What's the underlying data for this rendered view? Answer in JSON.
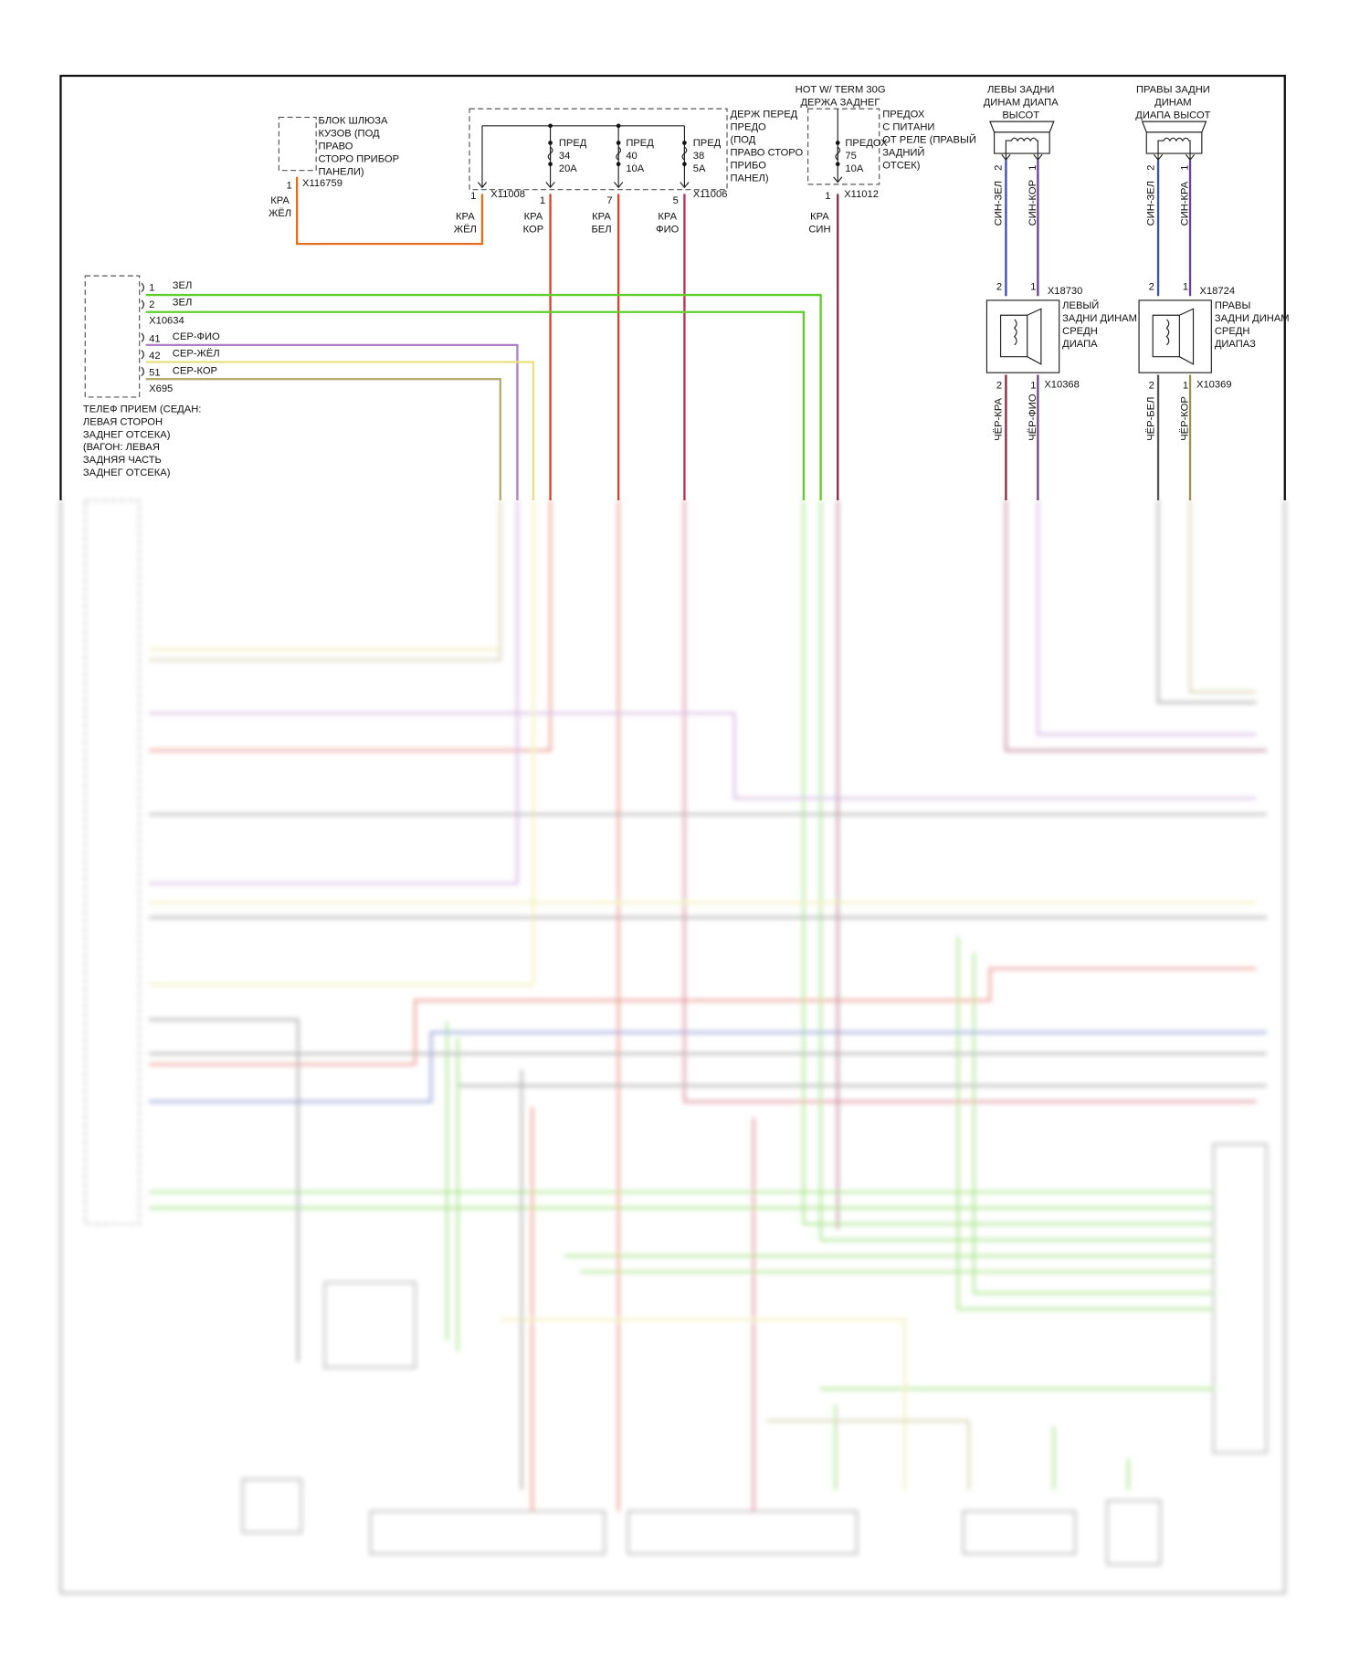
{
  "colors": {
    "green": "#5ecf2a",
    "red": "#d9412a",
    "orange": "#e0701e",
    "purple": "#b07cc6",
    "yellow": "#e8e07a",
    "olive": "#b5ad70",
    "crimson": "#c0304a",
    "maroon": "#8a2a4a",
    "blue": "#3a4fb0",
    "violet": "#6a3fa0",
    "grey": "#666666"
  },
  "body_gateway": {
    "lines": [
      "БЛОК ШЛЮЗА",
      "КУЗОВ (ПОД",
      "ПРАВО",
      "СТОРО ПРИБОР",
      "ПАНЕЛИ)"
    ],
    "pin": "1",
    "connector": "X116759",
    "wire": [
      "КРА",
      "ЖЁЛ"
    ]
  },
  "front_fuse_box": {
    "lines": [
      "ДЕРЖ ПЕРЕД",
      "ПРЕДО",
      "(ПОД",
      "ПРАВО СТОРО",
      "ПРИБО",
      "ПАНЕЛ)"
    ],
    "fuses": [
      {
        "l1": "ПРЕД",
        "l2": "34",
        "l3": "20A"
      },
      {
        "l1": "ПРЕД",
        "l2": "40",
        "l3": "10A"
      },
      {
        "l1": "ПРЕД",
        "l2": "38",
        "l3": "5A"
      }
    ],
    "pins": [
      "1",
      "1",
      "7",
      "5"
    ],
    "connectors": [
      "X11008",
      "X11006"
    ],
    "wires": [
      [
        "КРА",
        "ЖЁЛ"
      ],
      [
        "КРА",
        "КОР"
      ],
      [
        "КРА",
        "БЕЛ"
      ],
      [
        "КРА",
        "ФИО"
      ]
    ]
  },
  "rear_fuse": {
    "hot": "HOT W/ TERM 30G",
    "holder": "ДЕРЖА ЗАДНЕГ",
    "fuse": {
      "l1": "ПРЕДОХ",
      "l2": "75",
      "l3": "10A"
    },
    "lines": [
      "ПРЕДОХ",
      "С ПИТАНИ",
      "ОТ РЕЛЕ (ПРАВЫЙ",
      "ЗАДНИЙ",
      "ОТСЕК)"
    ],
    "pin": "1",
    "connector": "X11012",
    "wire": [
      "КРА",
      "СИН"
    ]
  },
  "left_tweeter": {
    "lines": [
      "ЛЕВЫ ЗАДНИ",
      "ДИНАМ ДИАПА",
      "ВЫСОТ"
    ],
    "pins": [
      "2",
      "1"
    ],
    "wires": [
      "СИН-ЗЕЛ",
      "СИН-КОР"
    ]
  },
  "right_tweeter": {
    "lines": [
      "ПРАВЫ ЗАДНИ",
      "ДИНАМ",
      "ДИАПА ВЫСОТ"
    ],
    "pins": [
      "2",
      "1"
    ],
    "wires": [
      "СИН-ЗЕЛ",
      "СИН-КРА"
    ]
  },
  "left_mid": {
    "pins_top": [
      "2",
      "1"
    ],
    "connector_top": "X18730",
    "lines": [
      "ЛЕВЫЙ",
      "ЗАДНИ ДИНАМ",
      "СРЕДН",
      "ДИАПА"
    ],
    "pins_bottom": [
      "2",
      "1"
    ],
    "connector_bottom": "X10368",
    "wires": [
      "ЧЁР-КРА",
      "ЧЁР-ФИО"
    ]
  },
  "right_mid": {
    "pins_top": [
      "2",
      "1"
    ],
    "connector_top": "X18724",
    "lines": [
      "ПРАВЫ",
      "ЗАДНИ ДИНАМ",
      "СРЕДН",
      "ДИАПАЗ"
    ],
    "pins_bottom": [
      "2",
      "1"
    ],
    "connector_bottom": "X10369",
    "wires": [
      "ЧЁР-БЕЛ",
      "ЧЁР-КОР"
    ]
  },
  "phone": {
    "pins": [
      {
        "n": "1",
        "c": "ЗЕЛ"
      },
      {
        "n": "2",
        "c": "ЗЕЛ"
      },
      {
        "n": "41",
        "c": "СЕР-ФИО"
      },
      {
        "n": "42",
        "c": "СЕР-ЖЁЛ"
      },
      {
        "n": "51",
        "c": "СЕР-КОР"
      }
    ],
    "connectors": [
      "X10634",
      "X695"
    ],
    "lines": [
      "ТЕЛЕФ ПРИЕМ (СЕДАН:",
      "ЛЕВАЯ СТОРОН",
      "ЗАДНЕГ ОТСЕКА)",
      "(ВАГОН: ЛЕВАЯ",
      "ЗАДНЯЯ ЧАСТЬ",
      "ЗАДНЕГ ОТСЕКА)"
    ]
  }
}
